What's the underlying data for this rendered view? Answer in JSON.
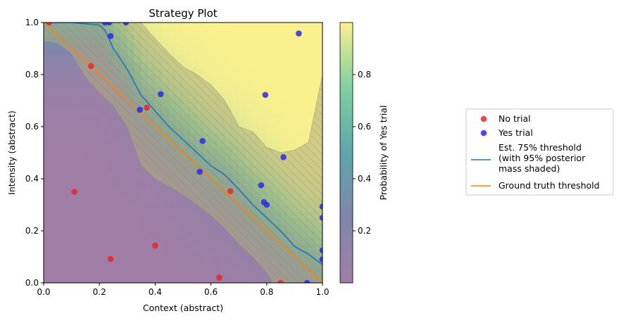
{
  "chart_data": {
    "type": "scatter",
    "title": "Strategy Plot",
    "xlabel": "Context (abstract)",
    "ylabel": "Intensity (abstract)",
    "xlim": [
      0,
      1
    ],
    "ylim": [
      0,
      1
    ],
    "xticks": [
      "0.0",
      "0.2",
      "0.4",
      "0.6",
      "0.8",
      "1.0"
    ],
    "yticks": [
      "0.0",
      "0.2",
      "0.4",
      "0.6",
      "0.8",
      "1.0"
    ],
    "grid": false,
    "legend_position": "right",
    "colorbar": {
      "label": "Probability of Yes trial",
      "ticks": [
        "0.2",
        "0.4",
        "0.6",
        "0.8"
      ],
      "tick_values": [
        0.2,
        0.4,
        0.6,
        0.8
      ],
      "range": [
        0.0,
        1.0
      ]
    },
    "colors": {
      "no_trial": "#e8262a",
      "yes_trial": "#2a2ae8",
      "threshold": "#1f77b4",
      "ground_truth": "#ff7f0e",
      "shade": "#b0ad7d"
    },
    "series": [
      {
        "name": "No trial",
        "points": [
          [
            0.02,
            1.0
          ],
          [
            0.17,
            0.833
          ],
          [
            0.37,
            0.673
          ],
          [
            0.11,
            0.35
          ],
          [
            0.24,
            0.092
          ],
          [
            0.4,
            0.143
          ],
          [
            0.63,
            0.02
          ],
          [
            0.67,
            0.352
          ],
          [
            0.85,
            0.0
          ]
        ]
      },
      {
        "name": "Yes trial",
        "points": [
          [
            0.22,
            1.0
          ],
          [
            0.235,
            1.0
          ],
          [
            0.295,
            1.0
          ],
          [
            0.24,
            0.948
          ],
          [
            0.915,
            0.958
          ],
          [
            0.42,
            0.725
          ],
          [
            0.795,
            0.722
          ],
          [
            0.345,
            0.665
          ],
          [
            0.57,
            0.545
          ],
          [
            0.86,
            0.483
          ],
          [
            0.56,
            0.427
          ],
          [
            0.78,
            0.375
          ],
          [
            0.79,
            0.31
          ],
          [
            0.8,
            0.3
          ],
          [
            1.0,
            0.293
          ],
          [
            1.0,
            0.25
          ],
          [
            1.0,
            0.125
          ],
          [
            1.0,
            0.09
          ],
          [
            0.945,
            0.0
          ]
        ]
      }
    ],
    "threshold_line": {
      "name": "Est. 75% threshold\n(with 95% posterior\nmass shaded)",
      "points": [
        [
          0.0,
          1.0
        ],
        [
          0.1,
          1.0
        ],
        [
          0.2,
          0.99
        ],
        [
          0.22,
          0.97
        ],
        [
          0.25,
          0.9
        ],
        [
          0.3,
          0.82
        ],
        [
          0.35,
          0.72
        ],
        [
          0.4,
          0.66
        ],
        [
          0.45,
          0.6
        ],
        [
          0.5,
          0.55
        ],
        [
          0.55,
          0.5
        ],
        [
          0.6,
          0.45
        ],
        [
          0.65,
          0.415
        ],
        [
          0.7,
          0.36
        ],
        [
          0.75,
          0.3
        ],
        [
          0.8,
          0.25
        ],
        [
          0.85,
          0.2
        ],
        [
          0.9,
          0.14
        ],
        [
          0.95,
          0.11
        ],
        [
          1.0,
          0.07
        ]
      ]
    },
    "ground_truth_line": {
      "name": "Ground truth threshold",
      "points": [
        [
          0.0,
          1.0
        ],
        [
          1.0,
          0.0
        ]
      ]
    },
    "shaded_band": {
      "upper": [
        [
          0.0,
          1.0
        ],
        [
          0.35,
          1.0
        ],
        [
          0.38,
          0.96
        ],
        [
          0.45,
          0.88
        ],
        [
          0.5,
          0.83
        ],
        [
          0.55,
          0.8
        ],
        [
          0.6,
          0.76
        ],
        [
          0.65,
          0.7
        ],
        [
          0.7,
          0.6
        ],
        [
          0.75,
          0.58
        ],
        [
          0.8,
          0.52
        ],
        [
          0.85,
          0.5
        ],
        [
          0.9,
          0.51
        ],
        [
          0.95,
          0.54
        ],
        [
          1.0,
          0.8
        ]
      ],
      "lower": [
        [
          0.0,
          0.93
        ],
        [
          0.05,
          0.92
        ],
        [
          0.1,
          0.88
        ],
        [
          0.15,
          0.79
        ],
        [
          0.2,
          0.73
        ],
        [
          0.25,
          0.68
        ],
        [
          0.3,
          0.6
        ],
        [
          0.35,
          0.45
        ],
        [
          0.4,
          0.4
        ],
        [
          0.45,
          0.37
        ],
        [
          0.5,
          0.34
        ],
        [
          0.55,
          0.3
        ],
        [
          0.6,
          0.26
        ],
        [
          0.65,
          0.21
        ],
        [
          0.7,
          0.15
        ],
        [
          0.75,
          0.1
        ],
        [
          0.8,
          0.04
        ],
        [
          0.82,
          0.0
        ]
      ]
    }
  }
}
